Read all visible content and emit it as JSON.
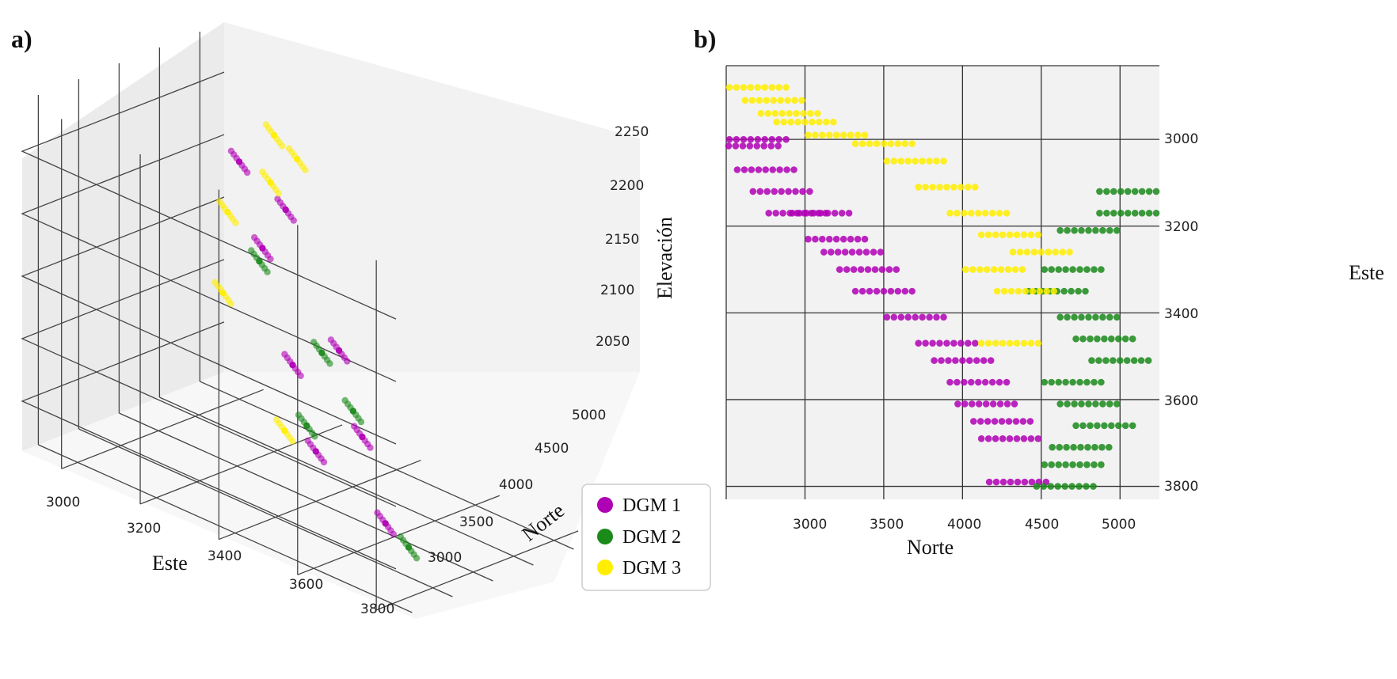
{
  "colors": {
    "DGM 1": "#b000b5",
    "DGM 2": "#1a8a1a",
    "DGM 3": "#ffee00"
  },
  "chart_data": [
    {
      "panel": "a)",
      "type": "scatter",
      "projection": "3d",
      "xlabel": "Este",
      "ylabel": "Norte",
      "zlabel": "Elevación",
      "x_ticks": [
        "3000",
        "3200",
        "3400",
        "3600",
        "3800"
      ],
      "y_ticks": [
        "3000",
        "3500",
        "4000",
        "4500",
        "5000"
      ],
      "z_ticks": [
        "2050",
        "2100",
        "2150",
        "2200",
        "2250"
      ],
      "xlim": [
        2900,
        3850
      ],
      "ylim": [
        2700,
        5200
      ],
      "zlim": [
        2010,
        2290
      ],
      "grid": true,
      "series": [
        {
          "name": "DGM 1",
          "points": [
            [
              3000,
              3000,
              2200
            ],
            [
              3100,
              3200,
              2150
            ],
            [
              3300,
              3800,
              2100
            ],
            [
              3500,
              4200,
              2150
            ],
            [
              3600,
              4400,
              2100
            ],
            [
              3200,
              3400,
              2200
            ],
            [
              3400,
              4000,
              2050
            ],
            [
              3700,
              4600,
              2050
            ]
          ]
        },
        {
          "name": "DGM 2",
          "points": [
            [
              3400,
              4700,
              2220
            ],
            [
              3600,
              4900,
              2180
            ],
            [
              3700,
              5000,
              2150
            ],
            [
              3500,
              4600,
              2100
            ],
            [
              3800,
              4800,
              2050
            ]
          ]
        },
        {
          "name": "DGM 3",
          "points": [
            [
              2950,
              2900,
              2150
            ],
            [
              3100,
              3100,
              2200
            ],
            [
              3250,
              3500,
              2250
            ],
            [
              3000,
              3200,
              2100
            ],
            [
              3300,
              3900,
              2050
            ],
            [
              3150,
              3300,
              2250
            ]
          ]
        }
      ]
    },
    {
      "panel": "b)",
      "type": "scatter",
      "xlabel": "Norte",
      "ylabel": "Este",
      "x_ticks": [
        "3000",
        "3500",
        "4000",
        "4500",
        "5000"
      ],
      "y_ticks": [
        "3000",
        "3200",
        "3400",
        "3600",
        "3800"
      ],
      "xlim": [
        2500,
        5250
      ],
      "ylim": [
        2830,
        3830
      ],
      "y_inverted": true,
      "grid": true,
      "series": [
        {
          "name": "DGM 1",
          "points": [
            [
              2650,
              3015
            ],
            [
              2700,
              3000
            ],
            [
              2750,
              3070
            ],
            [
              2850,
              3120
            ],
            [
              2950,
              3170
            ],
            [
              3100,
              3170
            ],
            [
              3200,
              3230
            ],
            [
              3300,
              3260
            ],
            [
              3400,
              3300
            ],
            [
              3500,
              3350
            ],
            [
              3700,
              3410
            ],
            [
              3900,
              3470
            ],
            [
              4000,
              3510
            ],
            [
              4100,
              3560
            ],
            [
              4150,
              3610
            ],
            [
              4250,
              3650
            ],
            [
              4300,
              3690
            ],
            [
              4350,
              3790
            ]
          ]
        },
        {
          "name": "DGM 2",
          "points": [
            [
              5050,
              3120
            ],
            [
              5050,
              3170
            ],
            [
              4800,
              3210
            ],
            [
              4700,
              3300
            ],
            [
              4600,
              3350
            ],
            [
              4800,
              3410
            ],
            [
              4900,
              3460
            ],
            [
              5000,
              3510
            ],
            [
              4700,
              3560
            ],
            [
              4800,
              3610
            ],
            [
              4900,
              3660
            ],
            [
              4750,
              3710
            ],
            [
              4700,
              3750
            ],
            [
              4650,
              3800
            ]
          ]
        },
        {
          "name": "DGM 3",
          "points": [
            [
              2700,
              2880
            ],
            [
              2800,
              2910
            ],
            [
              2900,
              2940
            ],
            [
              3000,
              2960
            ],
            [
              3200,
              2990
            ],
            [
              3500,
              3010
            ],
            [
              3700,
              3050
            ],
            [
              3900,
              3110
            ],
            [
              4100,
              3170
            ],
            [
              4300,
              3220
            ],
            [
              4500,
              3260
            ],
            [
              4200,
              3300
            ],
            [
              4400,
              3350
            ],
            [
              4300,
              3470
            ]
          ]
        }
      ]
    }
  ],
  "legend": {
    "placement": "center-bottom",
    "entries": [
      "DGM 1",
      "DGM 2",
      "DGM 3"
    ]
  }
}
